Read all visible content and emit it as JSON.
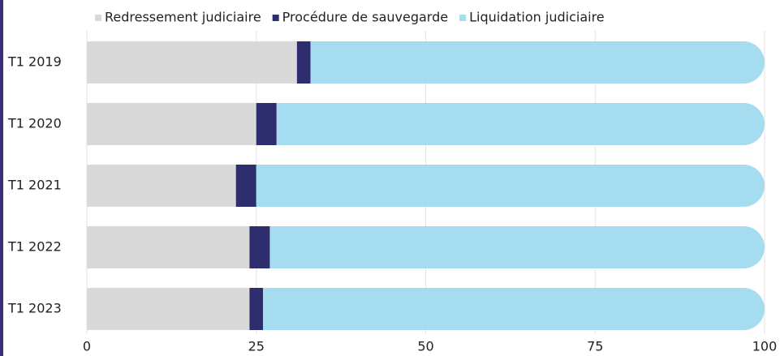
{
  "chart_data": {
    "type": "bar",
    "orientation": "horizontal",
    "stacked": true,
    "categories": [
      "T1 2019",
      "T1 2020",
      "T1 2021",
      "T1 2022",
      "T1 2023"
    ],
    "series": [
      {
        "name": "Redressement judiciaire",
        "color": "#d9d9d9",
        "values": [
          31,
          25,
          22,
          24,
          24
        ]
      },
      {
        "name": "Procédure de sauvegarde",
        "color": "#2e2d6e",
        "values": [
          2,
          3,
          3,
          3,
          2
        ]
      },
      {
        "name": "Liquidation judiciaire",
        "color": "#a6dcf0",
        "values": [
          67,
          72,
          75,
          73,
          74
        ]
      }
    ],
    "xlim": [
      0,
      100
    ],
    "xticks": [
      0,
      25,
      50,
      75,
      100
    ],
    "grid": true,
    "legend": "top"
  }
}
